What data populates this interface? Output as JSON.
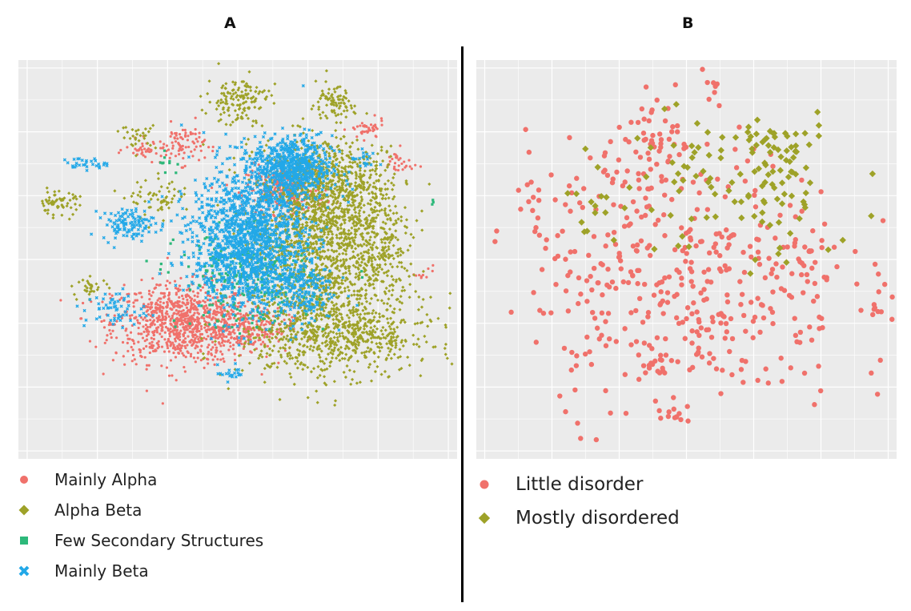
{
  "chart_data": [
    {
      "panel": "A",
      "type": "scatter",
      "title": "A",
      "xlabel": "",
      "ylabel": "",
      "xlim": [
        -10,
        10
      ],
      "ylim": [
        -10,
        10
      ],
      "grid": true,
      "legend_position": "bottom",
      "colors": {
        "Mainly Alpha": "#f0716b",
        "Alpha Beta": "#9ea228",
        "Few Secondary Structures": "#2db87a",
        "Mainly Beta": "#22a8e8"
      },
      "series": [
        {
          "name": "Mainly Alpha",
          "marker": "circle",
          "color": "#f0716b",
          "clusters": [
            {
              "x": -2.5,
              "y": -3.2,
              "sx": 1.6,
              "sy": 1.0,
              "n": 900
            },
            {
              "x": 2.2,
              "y": 3.5,
              "sx": 0.9,
              "sy": 0.6,
              "n": 260
            },
            {
              "x": -2.5,
              "y": 5.8,
              "sx": 0.5,
              "sy": 0.5,
              "n": 80
            },
            {
              "x": -4.1,
              "y": 5.5,
              "sx": 0.5,
              "sy": 0.25,
              "n": 40
            },
            {
              "x": 5.9,
              "y": 6.5,
              "sx": 0.4,
              "sy": 0.25,
              "n": 40
            },
            {
              "x": 7.3,
              "y": 4.8,
              "sx": 0.35,
              "sy": 0.35,
              "n": 30
            },
            {
              "x": 0.5,
              "y": -3.5,
              "sx": 1.0,
              "sy": 0.5,
              "n": 200
            },
            {
              "x": 8.5,
              "y": -0.7,
              "sx": 0.2,
              "sy": 0.2,
              "n": 10
            }
          ]
        },
        {
          "name": "Alpha Beta",
          "marker": "diamond",
          "color": "#9ea228",
          "clusters": [
            {
              "x": 3.5,
              "y": 0.5,
              "sx": 1.5,
              "sy": 2.5,
              "n": 1300
            },
            {
              "x": 4.5,
              "y": -3.8,
              "sx": 2.2,
              "sy": 1.0,
              "n": 650
            },
            {
              "x": 4.0,
              "y": 3.5,
              "sx": 1.2,
              "sy": 1.2,
              "n": 420
            },
            {
              "x": 0.0,
              "y": 8.0,
              "sx": 0.7,
              "sy": 0.6,
              "n": 140
            },
            {
              "x": 4.3,
              "y": 7.8,
              "sx": 0.5,
              "sy": 0.4,
              "n": 90
            },
            {
              "x": -8.2,
              "y": 2.8,
              "sx": 0.5,
              "sy": 0.3,
              "n": 60
            },
            {
              "x": -6.7,
              "y": -1.4,
              "sx": 0.4,
              "sy": 0.25,
              "n": 30
            },
            {
              "x": -4.5,
              "y": 6.2,
              "sx": 0.4,
              "sy": 0.3,
              "n": 30
            },
            {
              "x": 6.5,
              "y": 1.0,
              "sx": 0.9,
              "sy": 1.6,
              "n": 260
            },
            {
              "x": -3.5,
              "y": 3.0,
              "sx": 0.7,
              "sy": 0.5,
              "n": 60
            },
            {
              "x": 5.5,
              "y": 4.0,
              "sx": 0.8,
              "sy": 0.8,
              "n": 120
            }
          ]
        },
        {
          "name": "Few Secondary Structures",
          "marker": "square",
          "color": "#2db87a",
          "clusters": [
            {
              "x": 0.3,
              "y": -1.0,
              "sx": 1.5,
              "sy": 1.2,
              "n": 260
            },
            {
              "x": -3.2,
              "y": 4.8,
              "sx": 0.3,
              "sy": 0.3,
              "n": 10
            },
            {
              "x": 8.9,
              "y": 2.9,
              "sx": 0.1,
              "sy": 0.1,
              "n": 3
            }
          ]
        },
        {
          "name": "Mainly Beta",
          "marker": "cross",
          "color": "#22a8e8",
          "clusters": [
            {
              "x": 0.5,
              "y": 1.0,
              "sx": 1.3,
              "sy": 1.8,
              "n": 1500
            },
            {
              "x": 2.5,
              "y": 4.6,
              "sx": 0.9,
              "sy": 0.8,
              "n": 650
            },
            {
              "x": -5.0,
              "y": 1.8,
              "sx": 0.6,
              "sy": 0.4,
              "n": 110
            },
            {
              "x": -5.6,
              "y": -2.5,
              "sx": 0.7,
              "sy": 0.5,
              "n": 60
            },
            {
              "x": -7.0,
              "y": 4.8,
              "sx": 0.5,
              "sy": 0.15,
              "n": 30
            },
            {
              "x": 2.8,
              "y": -1.5,
              "sx": 0.8,
              "sy": 0.8,
              "n": 200
            },
            {
              "x": 5.8,
              "y": 5.0,
              "sx": 0.3,
              "sy": 0.3,
              "n": 20
            },
            {
              "x": -0.3,
              "y": -5.7,
              "sx": 0.3,
              "sy": 0.2,
              "n": 20
            }
          ]
        }
      ]
    },
    {
      "panel": "B",
      "type": "scatter",
      "title": "B",
      "xlabel": "",
      "ylabel": "",
      "xlim": [
        -10,
        10
      ],
      "ylim": [
        -10,
        10
      ],
      "grid": true,
      "legend_position": "bottom",
      "colors": {
        "Little disorder": "#f0716b",
        "Mostly disordered": "#9ea228"
      },
      "series": [
        {
          "name": "Little disorder",
          "marker": "circle",
          "color": "#f0716b",
          "clusters": [
            {
              "x": 0.0,
              "y": -1.0,
              "sx": 3.8,
              "sy": 3.4,
              "n": 420
            },
            {
              "x": -1.5,
              "y": 5.5,
              "sx": 1.2,
              "sy": 1.2,
              "n": 60
            },
            {
              "x": -0.4,
              "y": -8.0,
              "sx": 0.3,
              "sy": 0.2,
              "n": 8
            },
            {
              "x": 9.2,
              "y": -2.5,
              "sx": 0.2,
              "sy": 0.15,
              "n": 6
            },
            {
              "x": -7.0,
              "y": 2.0,
              "sx": 0.6,
              "sy": 1.5,
              "n": 14
            },
            {
              "x": -1.6,
              "y": -5.3,
              "sx": 0.4,
              "sy": 0.3,
              "n": 12
            },
            {
              "x": 6.2,
              "y": 0.0,
              "sx": 0.6,
              "sy": 0.8,
              "n": 12
            },
            {
              "x": 1.0,
              "y": 8.5,
              "sx": 0.6,
              "sy": 0.4,
              "n": 8
            }
          ]
        },
        {
          "name": "Mostly disordered",
          "marker": "diamond",
          "color": "#9ea228",
          "clusters": [
            {
              "x": 2.5,
              "y": 3.5,
              "sx": 2.8,
              "sy": 2.0,
              "n": 95
            },
            {
              "x": 3.5,
              "y": 6.4,
              "sx": 1.5,
              "sy": 0.6,
              "n": 20
            },
            {
              "x": 4.8,
              "y": 4.8,
              "sx": 0.8,
              "sy": 1.2,
              "n": 15
            },
            {
              "x": -4.5,
              "y": 3.0,
              "sx": 0.6,
              "sy": 1.0,
              "n": 15
            }
          ]
        }
      ]
    }
  ],
  "legends": {
    "a": [
      {
        "label": "Mainly Alpha",
        "marker": "circle",
        "color": "#f0716b"
      },
      {
        "label": "Alpha Beta",
        "marker": "diamond",
        "color": "#9ea228"
      },
      {
        "label": "Few Secondary Structures",
        "marker": "square",
        "color": "#2db87a"
      },
      {
        "label": "Mainly Beta",
        "marker": "cross",
        "color": "#22a8e8"
      }
    ],
    "b": [
      {
        "label": "Little disorder",
        "marker": "circle",
        "color": "#f0716b"
      },
      {
        "label": "Mostly disordered",
        "marker": "diamond",
        "color": "#9ea228"
      }
    ]
  }
}
